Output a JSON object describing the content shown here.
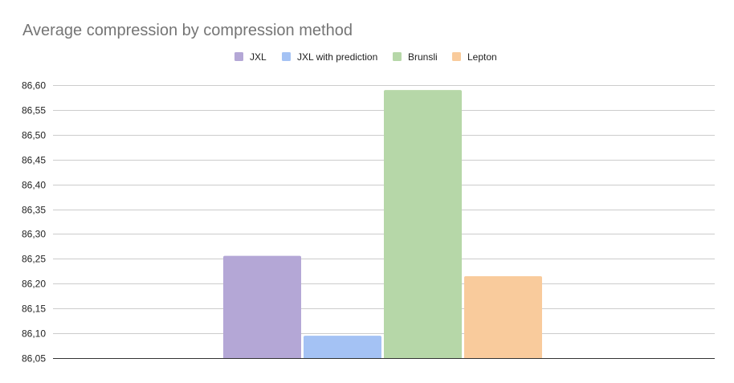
{
  "chart_data": {
    "type": "bar",
    "title": "Average compression by compression method",
    "xlabel": "",
    "ylabel": "",
    "categories": [
      ""
    ],
    "series": [
      {
        "name": "JXL",
        "values": [
          86.256
        ],
        "color": "#b4a7d6"
      },
      {
        "name": "JXL with prediction",
        "values": [
          86.095
        ],
        "color": "#a4c2f4"
      },
      {
        "name": "Brunsli",
        "values": [
          86.59
        ],
        "color": "#b6d7a8"
      },
      {
        "name": "Lepton",
        "values": [
          86.215
        ],
        "color": "#f9cb9c"
      }
    ],
    "ylim": [
      86.05,
      86.6
    ],
    "yticks": [
      "86,05",
      "86,10",
      "86,15",
      "86,20",
      "86,25",
      "86,30",
      "86,35",
      "86,40",
      "86,45",
      "86,50",
      "86,55",
      "86,60"
    ],
    "grid": true,
    "legend_position": "top-center"
  }
}
